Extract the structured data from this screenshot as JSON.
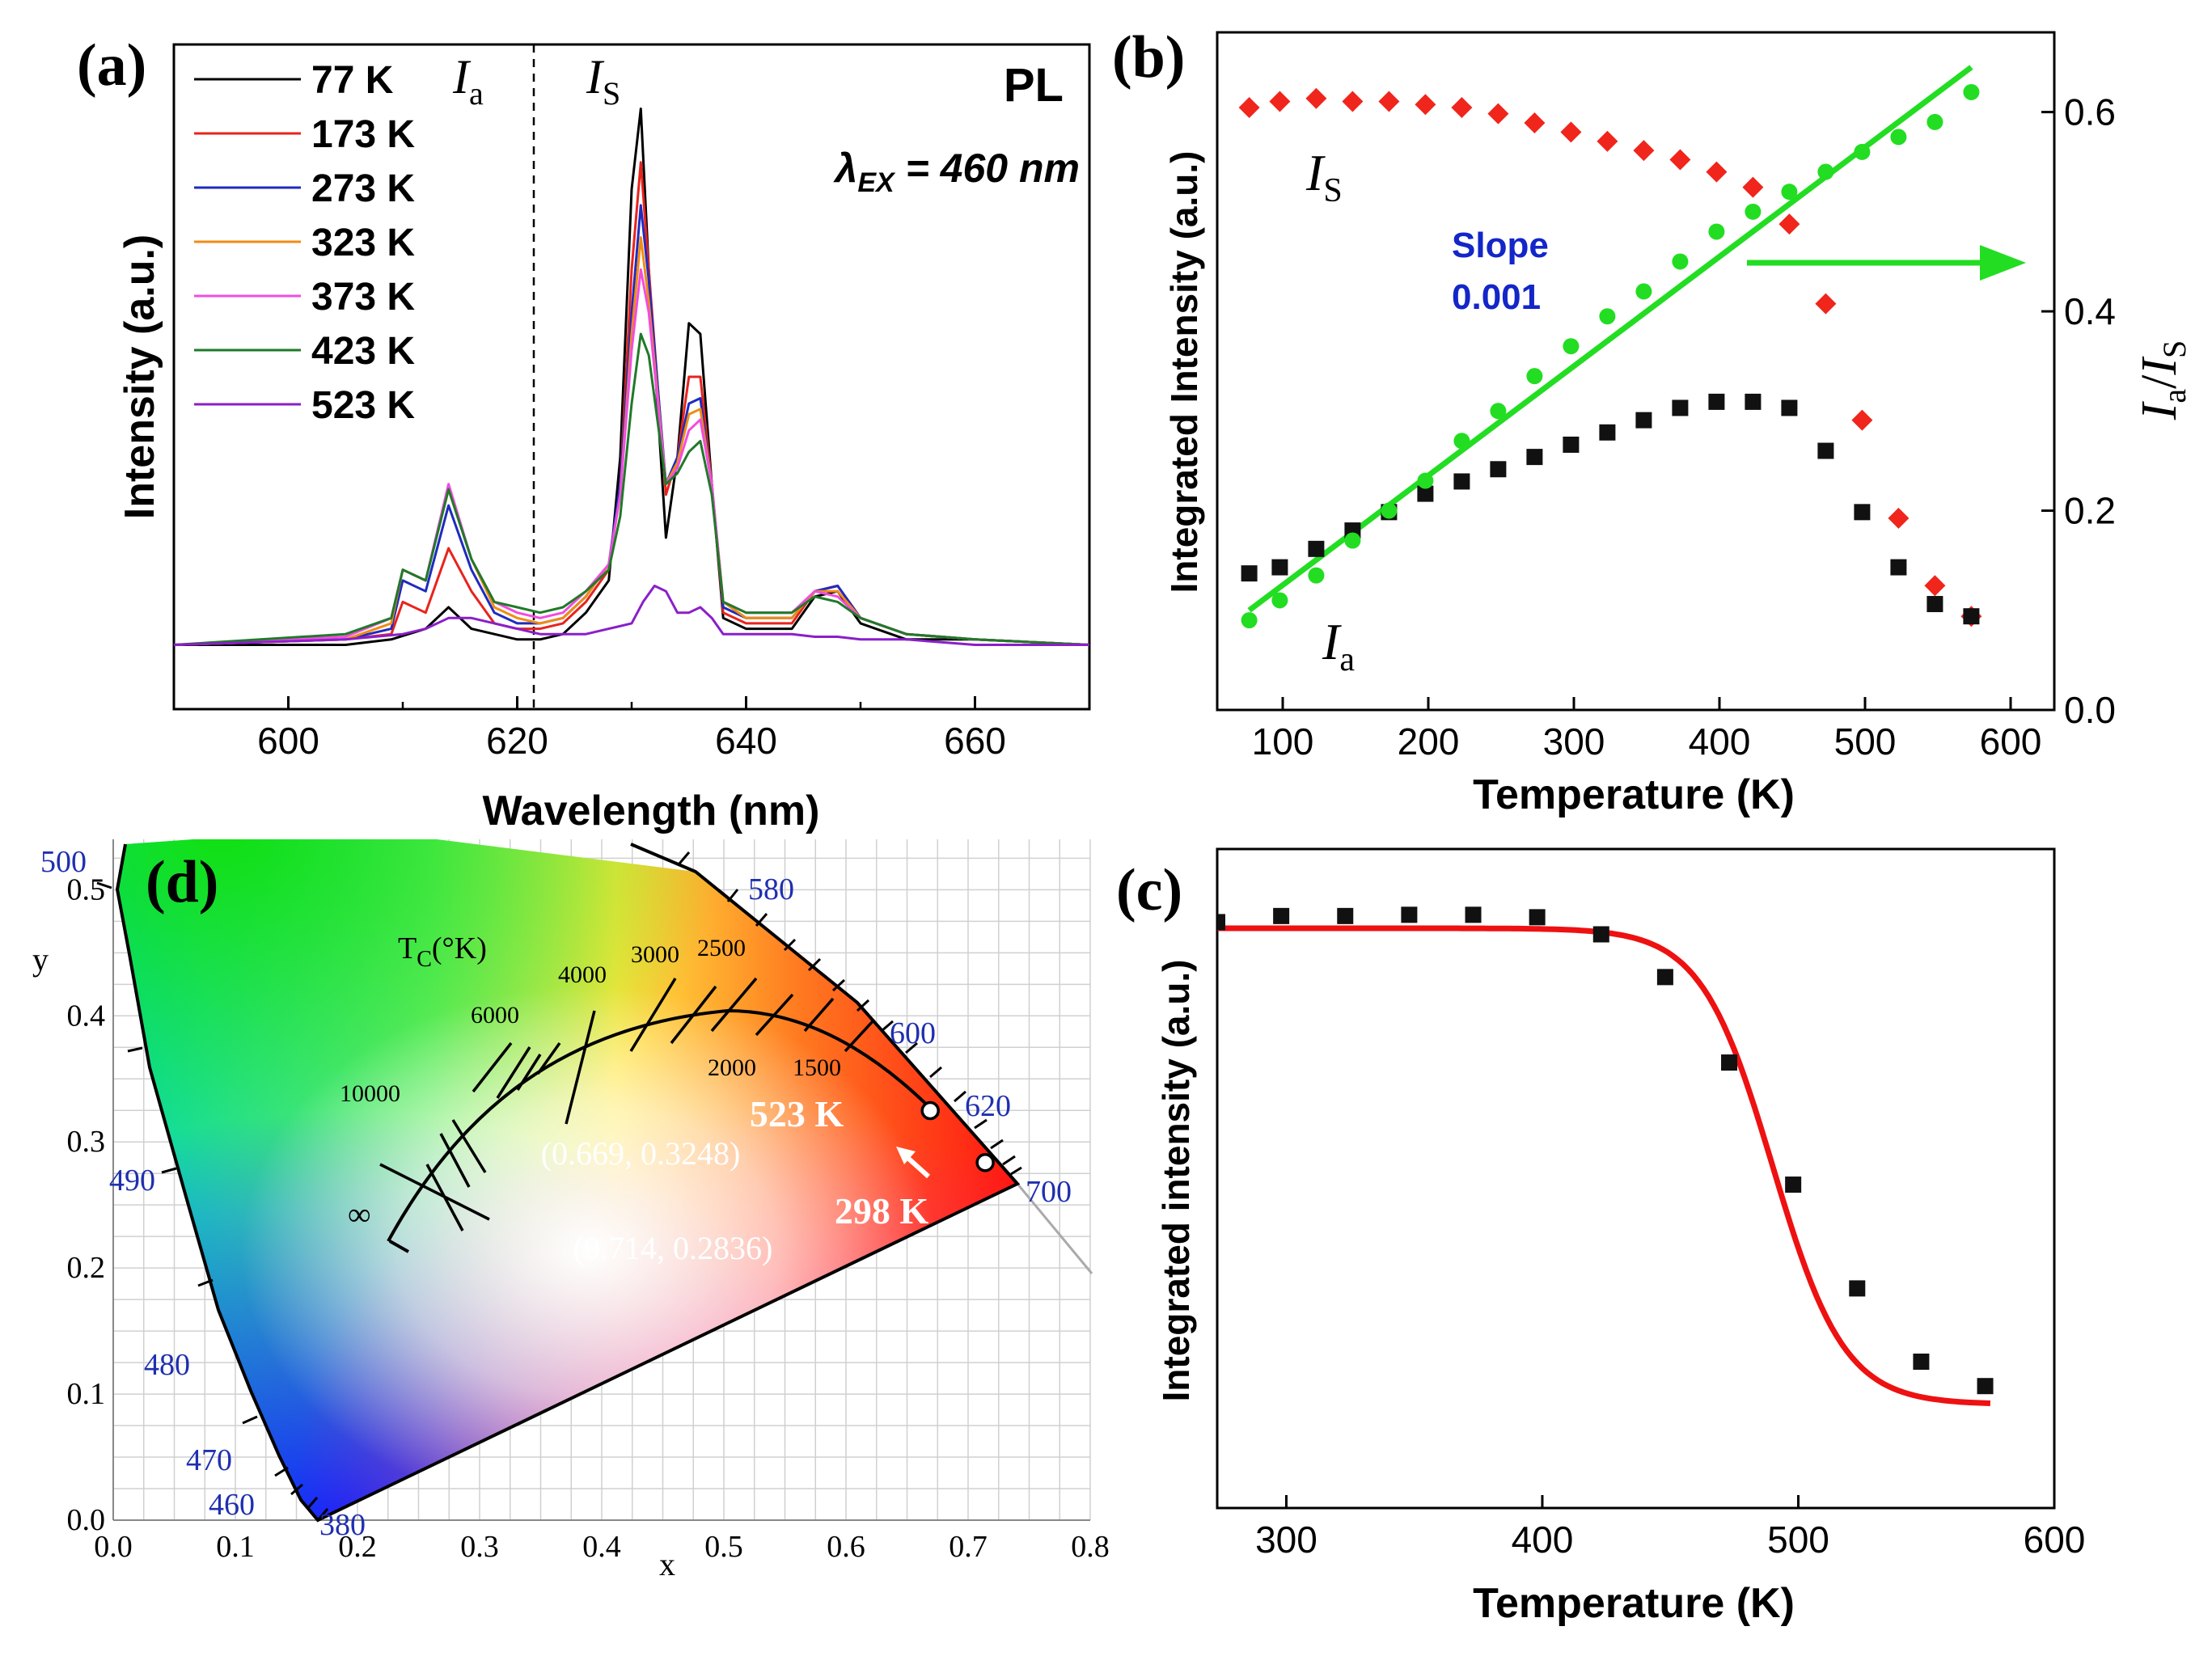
{
  "colors": {
    "k77": "#000000",
    "k173": "#e8231d",
    "k273": "#1f2bbf",
    "k323": "#f08c14",
    "k373": "#f24ce0",
    "k423": "#1f7a28",
    "k523": "#8a1fc9",
    "is_marker": "#f0251c",
    "ia_marker": "#111111",
    "ratio": "#22dd22",
    "fit": "#ee1111",
    "cie_blue": "#1f2fb0",
    "slope_text": "#1326c8"
  },
  "chart_data": [
    {
      "type": "line",
      "panel": "a",
      "label": "(a)",
      "title": "PL",
      "subtitle_lambda": "λ",
      "subtitle_sub": "EX",
      "subtitle_value": " = 460 nm",
      "xlabel": "Wavelength (nm)",
      "ylabel": "Intensity (a.u.)",
      "xlim": [
        590,
        670
      ],
      "ylim": [
        -0.12,
        1.12
      ],
      "xticks": [
        "600",
        "620",
        "640",
        "660"
      ],
      "divider_x": 622,
      "region_labels": [
        {
          "main": "I",
          "sub": "a"
        },
        {
          "main": "I",
          "sub": "S"
        }
      ],
      "series": [
        {
          "name": "77 K",
          "color_key": "k77",
          "x": [
            590,
            605,
            609,
            612,
            614,
            616,
            618,
            620,
            622,
            624,
            626,
            628,
            629,
            630,
            630.8,
            631.5,
            633,
            634,
            635,
            636,
            637,
            638,
            640,
            644,
            646,
            648,
            650,
            654,
            660,
            670
          ],
          "y": [
            0,
            0,
            0.01,
            0.03,
            0.07,
            0.03,
            0.02,
            0.01,
            0.01,
            0.02,
            0.06,
            0.12,
            0.35,
            0.85,
            1.0,
            0.7,
            0.2,
            0.35,
            0.6,
            0.58,
            0.3,
            0.05,
            0.03,
            0.03,
            0.09,
            0.1,
            0.04,
            0.01,
            0.01,
            0
          ]
        },
        {
          "name": "173 K",
          "color_key": "k173",
          "x": [
            590,
            605,
            609,
            610,
            612,
            614,
            616,
            618,
            620,
            622,
            624,
            626,
            628,
            629,
            630,
            630.8,
            631.5,
            633,
            634,
            635,
            636,
            637,
            638,
            640,
            644,
            646,
            648,
            650,
            654,
            660,
            670
          ],
          "y": [
            0,
            0.01,
            0.02,
            0.08,
            0.06,
            0.18,
            0.1,
            0.04,
            0.03,
            0.03,
            0.04,
            0.08,
            0.14,
            0.3,
            0.7,
            0.9,
            0.7,
            0.28,
            0.35,
            0.5,
            0.5,
            0.3,
            0.06,
            0.04,
            0.04,
            0.1,
            0.11,
            0.05,
            0.02,
            0.01,
            0
          ]
        },
        {
          "name": "273 K",
          "color_key": "k273",
          "x": [
            590,
            605,
            609,
            610,
            612,
            614,
            616,
            618,
            620,
            622,
            624,
            626,
            628,
            629,
            630,
            630.8,
            631.5,
            633,
            634,
            635,
            636,
            637,
            638,
            640,
            644,
            646,
            648,
            650,
            654,
            660,
            670
          ],
          "y": [
            0,
            0.01,
            0.03,
            0.12,
            0.1,
            0.26,
            0.14,
            0.06,
            0.04,
            0.04,
            0.05,
            0.09,
            0.15,
            0.3,
            0.62,
            0.82,
            0.68,
            0.3,
            0.35,
            0.45,
            0.46,
            0.3,
            0.07,
            0.05,
            0.05,
            0.1,
            0.11,
            0.05,
            0.02,
            0.01,
            0
          ]
        },
        {
          "name": "323 K",
          "color_key": "k323",
          "x": [
            590,
            605,
            609,
            610,
            612,
            614,
            616,
            618,
            620,
            622,
            624,
            626,
            628,
            629,
            630,
            630.8,
            631.5,
            633,
            634,
            635,
            636,
            637,
            638,
            640,
            644,
            646,
            648,
            650,
            654,
            660,
            670
          ],
          "y": [
            0,
            0.01,
            0.04,
            0.14,
            0.12,
            0.29,
            0.16,
            0.07,
            0.05,
            0.04,
            0.05,
            0.09,
            0.15,
            0.28,
            0.58,
            0.76,
            0.64,
            0.3,
            0.34,
            0.43,
            0.44,
            0.3,
            0.08,
            0.05,
            0.05,
            0.1,
            0.1,
            0.05,
            0.02,
            0.01,
            0
          ]
        },
        {
          "name": "373 K",
          "color_key": "k373",
          "x": [
            590,
            605,
            609,
            610,
            612,
            614,
            616,
            618,
            620,
            622,
            624,
            626,
            628,
            629,
            630,
            630.8,
            631.5,
            633,
            634,
            635,
            636,
            637,
            638,
            640,
            644,
            646,
            648,
            650,
            654,
            660,
            670
          ],
          "y": [
            0,
            0.015,
            0.05,
            0.14,
            0.12,
            0.3,
            0.16,
            0.08,
            0.06,
            0.05,
            0.06,
            0.1,
            0.15,
            0.28,
            0.55,
            0.7,
            0.62,
            0.3,
            0.33,
            0.4,
            0.42,
            0.3,
            0.08,
            0.06,
            0.06,
            0.1,
            0.09,
            0.05,
            0.02,
            0.01,
            0
          ]
        },
        {
          "name": "423 K",
          "color_key": "k423",
          "x": [
            590,
            605,
            609,
            610,
            612,
            614,
            616,
            618,
            620,
            622,
            624,
            626,
            628,
            629,
            630,
            630.8,
            631.5,
            633,
            634,
            635,
            636,
            637,
            638,
            640,
            644,
            646,
            648,
            650,
            654,
            660,
            670
          ],
          "y": [
            0,
            0.02,
            0.05,
            0.14,
            0.12,
            0.29,
            0.16,
            0.08,
            0.07,
            0.06,
            0.07,
            0.1,
            0.14,
            0.24,
            0.45,
            0.58,
            0.54,
            0.3,
            0.32,
            0.36,
            0.38,
            0.28,
            0.08,
            0.06,
            0.06,
            0.09,
            0.08,
            0.05,
            0.02,
            0.01,
            0
          ]
        },
        {
          "name": "523 K",
          "color_key": "k523",
          "x": [
            590,
            605,
            610,
            612,
            614,
            616,
            618,
            620,
            622,
            624,
            626,
            628,
            630,
            631,
            632,
            633,
            634,
            635,
            636,
            637,
            638,
            640,
            644,
            646,
            648,
            650,
            654,
            660,
            670
          ],
          "y": [
            0,
            0.01,
            0.02,
            0.03,
            0.05,
            0.05,
            0.04,
            0.03,
            0.02,
            0.02,
            0.02,
            0.03,
            0.04,
            0.08,
            0.11,
            0.1,
            0.06,
            0.06,
            0.07,
            0.05,
            0.02,
            0.02,
            0.02,
            0.015,
            0.015,
            0.01,
            0.01,
            0,
            0
          ]
        }
      ]
    },
    {
      "type": "scatter",
      "panel": "b",
      "label": "(b)",
      "xlabel": "Temperature (K)",
      "ylabel": "Integrated Intensity (a.u.)",
      "y2label_main": "I",
      "y2label_sub": "a",
      "y2label_slash": "/",
      "y2label_main2": "I",
      "y2label_sub2": "S",
      "xlim": [
        55,
        630
      ],
      "ylim_left": [
        0,
        1
      ],
      "ylim_right": [
        0,
        0.68
      ],
      "xticks": [
        "100",
        "200",
        "300",
        "400",
        "500",
        "600"
      ],
      "yticks_right": [
        "0.0",
        "0.2",
        "0.4",
        "0.6"
      ],
      "slope_label": "Slope",
      "slope_value": "0.001",
      "series_labels": [
        {
          "main": "I",
          "sub": "S"
        },
        {
          "main": "I",
          "sub": "a"
        }
      ],
      "temperatures": [
        77,
        98,
        123,
        148,
        173,
        198,
        223,
        248,
        273,
        298,
        323,
        348,
        373,
        398,
        423,
        448,
        473,
        498,
        523,
        548,
        573
      ],
      "I_S": [
        0.93,
        0.94,
        0.945,
        0.94,
        0.94,
        0.935,
        0.93,
        0.92,
        0.905,
        0.89,
        0.875,
        0.86,
        0.845,
        0.825,
        0.8,
        0.74,
        0.61,
        0.42,
        0.26,
        0.15,
        0.1
      ],
      "I_a": [
        0.17,
        0.18,
        0.21,
        0.24,
        0.27,
        0.3,
        0.32,
        0.34,
        0.36,
        0.38,
        0.4,
        0.42,
        0.44,
        0.45,
        0.45,
        0.44,
        0.37,
        0.27,
        0.18,
        0.12,
        0.1
      ],
      "ratio": [
        0.09,
        0.11,
        0.135,
        0.17,
        0.2,
        0.23,
        0.27,
        0.3,
        0.335,
        0.365,
        0.395,
        0.42,
        0.45,
        0.48,
        0.5,
        0.52,
        0.54,
        0.56,
        0.575,
        0.59,
        0.62
      ],
      "fit_line": {
        "x": [
          77,
          573
        ],
        "y": [
          0.1,
          0.645
        ]
      }
    },
    {
      "type": "scatter",
      "panel": "c",
      "label": "(c)",
      "xlabel": "Temperature (K)",
      "ylabel": "Integrated intensity (a.u.)",
      "xlim": [
        273,
        600
      ],
      "ylim": [
        0,
        1
      ],
      "xticks": [
        "300",
        "400",
        "500",
        "600"
      ],
      "x": [
        273,
        298,
        323,
        348,
        373,
        398,
        423,
        448,
        473,
        498,
        523,
        548,
        573
      ],
      "y": [
        0.92,
        0.93,
        0.93,
        0.932,
        0.932,
        0.928,
        0.9,
        0.83,
        0.69,
        0.49,
        0.32,
        0.2,
        0.16
      ],
      "fit": {
        "model": "sigmoid",
        "top": 0.91,
        "bottom": 0.13,
        "center": 490,
        "width": 14
      }
    },
    {
      "type": "diagram",
      "panel": "d",
      "label": "(d)",
      "xlabel": "x",
      "ylabel": "y",
      "xlim": [
        0,
        0.8
      ],
      "ylim": [
        0,
        0.54
      ],
      "xticks": [
        "0.0",
        "0.1",
        "0.2",
        "0.3",
        "0.4",
        "0.5",
        "0.6",
        "0.7",
        "0.8"
      ],
      "yticks": [
        "0.0",
        "0.1",
        "0.2",
        "0.3",
        "0.4",
        "0.5"
      ],
      "locus_labels": [
        "500",
        "490",
        "480",
        "470",
        "460",
        "380",
        "580",
        "600",
        "620",
        "700"
      ],
      "tc_label_main": "T",
      "tc_label_sub": "C",
      "tc_label_rest": "(°K)",
      "cct_labels": [
        "10000",
        "6000",
        "4000",
        "3000",
        "2500",
        "2000",
        "1500"
      ],
      "infinity": "∞",
      "points": [
        {
          "label": "523 K",
          "coord_text": "(0.669, 0.3248)",
          "x": 0.669,
          "y": 0.3248
        },
        {
          "label": "298 K",
          "coord_text": "(0.714, 0.2836)",
          "x": 0.714,
          "y": 0.2836
        }
      ]
    }
  ]
}
